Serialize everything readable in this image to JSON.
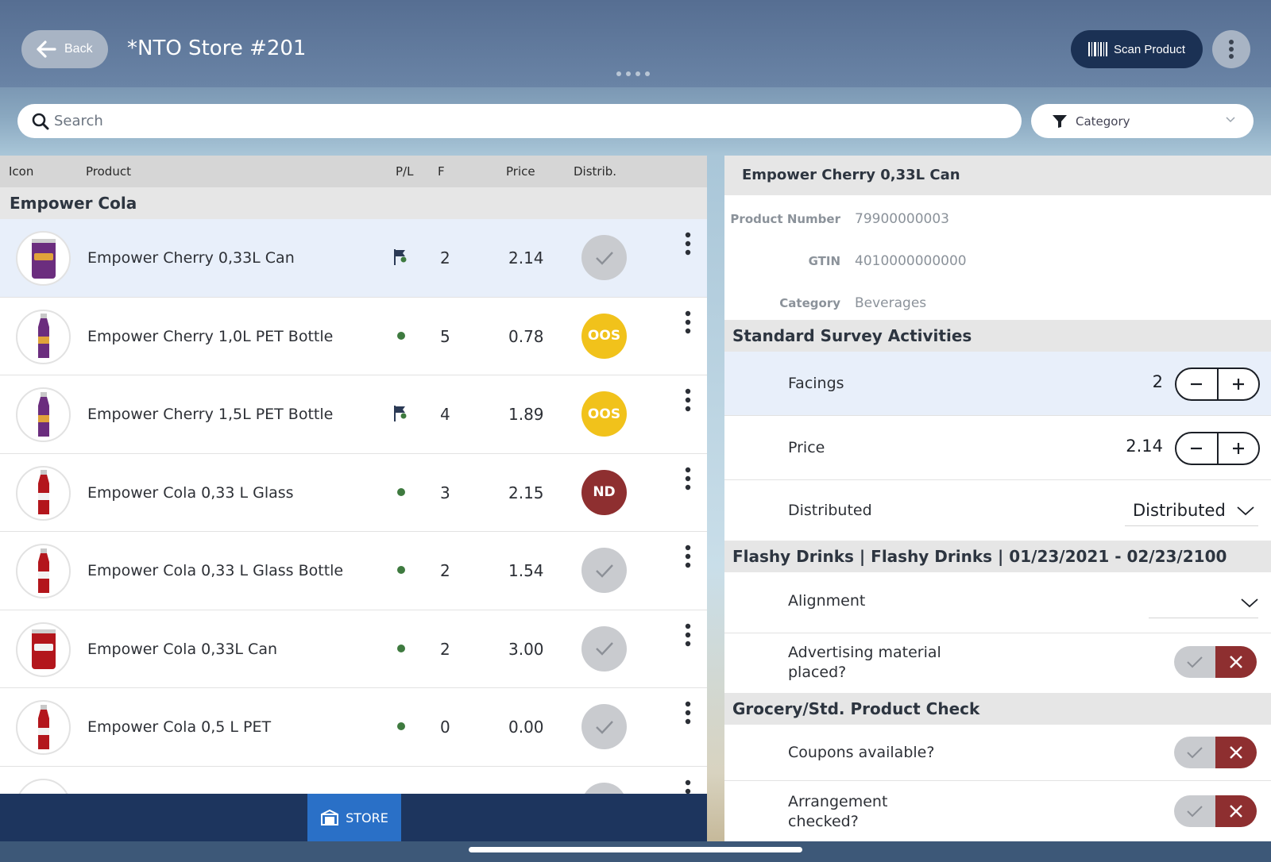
{
  "header": {
    "back_label": "Back",
    "store_title": "*NTO Store #201",
    "scan_label": "Scan Product"
  },
  "search": {
    "placeholder": "Search",
    "category_label": "Category"
  },
  "list": {
    "columns": {
      "icon": "Icon",
      "product": "Product",
      "pl": "P/L",
      "facings": "F",
      "price": "Price",
      "distrib": "Distrib."
    },
    "group": "Empower Cola",
    "rows": [
      {
        "name": "Empower Cherry 0,33L Can",
        "pl": "flag",
        "facings": "2",
        "price": "2.14",
        "dist": "check",
        "dist_label": "",
        "thumb": "can-purple"
      },
      {
        "name": "Empower Cherry 1,0L PET Bottle",
        "pl": "dot",
        "facings": "5",
        "price": "0.78",
        "dist": "oos",
        "dist_label": "OOS",
        "thumb": "bottle-purple"
      },
      {
        "name": "Empower Cherry 1,5L PET Bottle",
        "pl": "flag",
        "facings": "4",
        "price": "1.89",
        "dist": "oos",
        "dist_label": "OOS",
        "thumb": "bottle-purple"
      },
      {
        "name": "Empower Cola 0,33 L Glass",
        "pl": "dot",
        "facings": "3",
        "price": "2.15",
        "dist": "nd",
        "dist_label": "ND",
        "thumb": "glass-red"
      },
      {
        "name": "Empower Cola 0,33 L Glass Bottle",
        "pl": "dot",
        "facings": "2",
        "price": "1.54",
        "dist": "check",
        "dist_label": "",
        "thumb": "glass-red"
      },
      {
        "name": "Empower Cola 0,33L Can",
        "pl": "dot",
        "facings": "2",
        "price": "3.00",
        "dist": "check",
        "dist_label": "",
        "thumb": "can-red"
      },
      {
        "name": "Empower Cola 0,5 L PET",
        "pl": "dot",
        "facings": "0",
        "price": "0.00",
        "dist": "check",
        "dist_label": "",
        "thumb": "bottle-red"
      }
    ]
  },
  "bottom_tab": {
    "store_label": "STORE"
  },
  "detail": {
    "title": "Empower Cherry 0,33L Can",
    "info": [
      {
        "label": "Product Number",
        "value": "79900000003"
      },
      {
        "label": "GTIN",
        "value": "4010000000000"
      },
      {
        "label": "Category",
        "value": "Beverages"
      }
    ],
    "section_standard": "Standard Survey Activities",
    "facings_label": "Facings",
    "facings_value": "2",
    "price_label": "Price",
    "price_value": "2.14",
    "distributed_label": "Distributed",
    "distributed_value": "Distributed",
    "section_flashy": "Flashy Drinks | Flashy Drinks | 01/23/2021 - 02/23/2100",
    "alignment_label": "Alignment",
    "advertising_label_1": "Advertising material",
    "advertising_label_2": "placed?",
    "section_grocery": "Grocery/Std. Product Check",
    "coupons_label": "Coupons available?",
    "arrangement_label_1": "Arrangement",
    "arrangement_label_2": "checked?"
  },
  "colors": {
    "oos": "#f1c21b",
    "nd": "#8e2f30",
    "check": "#c9cbcf",
    "navy": "#1b3154",
    "selected_row": "#e8effa"
  }
}
